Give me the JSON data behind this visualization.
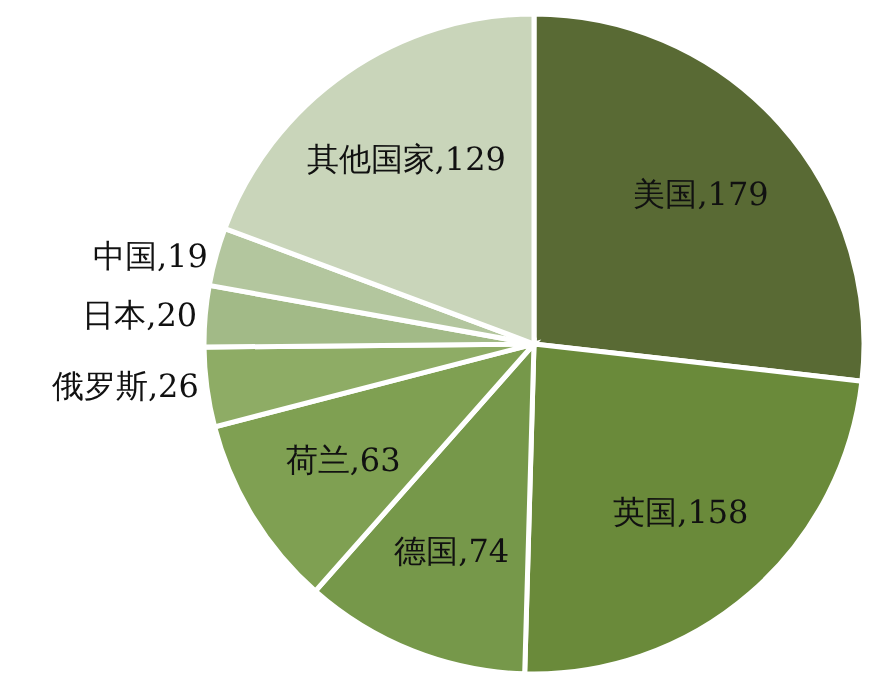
{
  "chart_data": {
    "type": "pie",
    "categories": [
      "美国",
      "英国",
      "德国",
      "荷兰",
      "俄罗斯",
      "日本",
      "中国",
      "其他国家"
    ],
    "values": [
      179,
      158,
      74,
      63,
      26,
      20,
      19,
      129
    ],
    "value_labels": [
      ",179",
      ",158",
      ",74",
      ",63",
      ",26",
      ",20",
      ",19",
      ",129"
    ],
    "colors": [
      "#596a34",
      "#6a8a3a",
      "#76984a",
      "#7fa052",
      "#8eac65",
      "#a2ba87",
      "#b3c69e",
      "#c9d5ba"
    ]
  }
}
